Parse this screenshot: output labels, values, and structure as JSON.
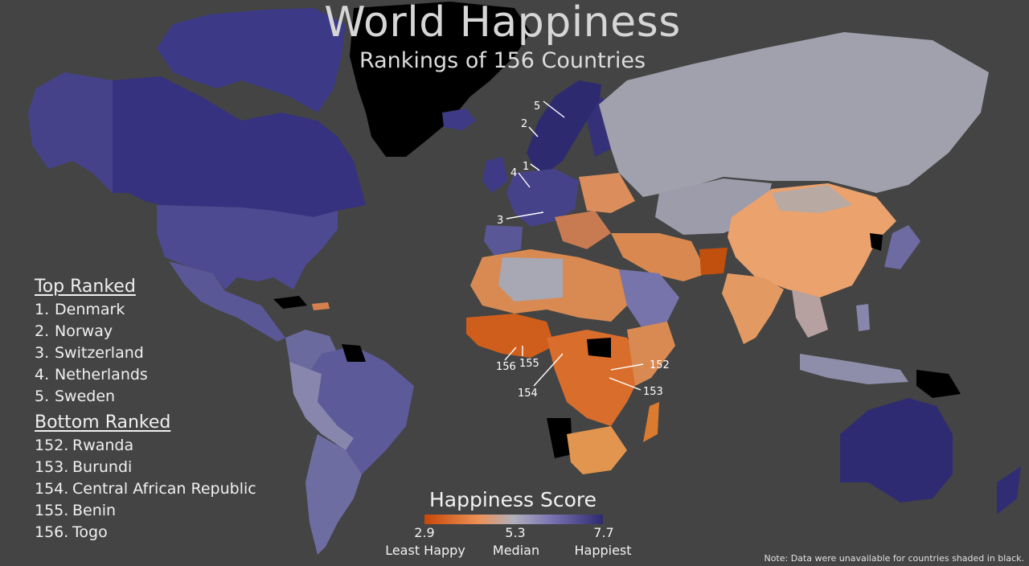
{
  "title": "World Happiness",
  "subtitle": "Rankings of 156 Countries",
  "top_ranked": {
    "heading": "Top Ranked",
    "items": [
      {
        "rank": "1.",
        "name": "Denmark"
      },
      {
        "rank": "2.",
        "name": "Norway"
      },
      {
        "rank": "3.",
        "name": "Switzerland"
      },
      {
        "rank": "4.",
        "name": "Netherlands"
      },
      {
        "rank": "5.",
        "name": "Sweden"
      }
    ]
  },
  "bottom_ranked": {
    "heading": "Bottom Ranked",
    "items": [
      {
        "rank": "152.",
        "name": "Rwanda"
      },
      {
        "rank": "153.",
        "name": "Burundi"
      },
      {
        "rank": "154.",
        "name": "Central African Republic"
      },
      {
        "rank": "155.",
        "name": "Benin"
      },
      {
        "rank": "156.",
        "name": "Togo"
      }
    ]
  },
  "legend": {
    "title": "Happiness Score",
    "min": "2.9",
    "mid": "5.3",
    "max": "7.7",
    "min_label": "Least Happy",
    "mid_label": "Median",
    "max_label": "Happiest",
    "colors": {
      "low": "#c84708",
      "median": "#b0b0bc",
      "high": "#2e2a70"
    }
  },
  "callouts": [
    "1",
    "2",
    "3",
    "4",
    "5",
    "152",
    "153",
    "154",
    "155",
    "156"
  ],
  "note": "Note: Data were unavailable for countries shaded in black.",
  "colors": {
    "ocean": "#444444",
    "no_data": "#000000",
    "happiest": "#2e2a70",
    "median": "#a8a8b4",
    "least_happy": "#c84708"
  }
}
